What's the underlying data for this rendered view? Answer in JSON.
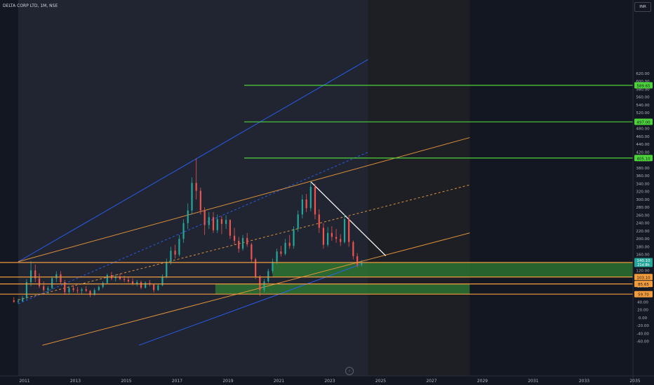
{
  "header": {
    "symbol_title": "DELTA CORP LTD, 1M, NSE",
    "currency": "INR"
  },
  "icons": {
    "logo": "tradingview-logo-icon"
  },
  "colors": {
    "background": "#131722",
    "up_candle": "#26a69a",
    "down_candle": "#ef5350",
    "resistance": "#4dd33a",
    "channel_orange": "#f39c3c",
    "channel_blue": "#2962ff",
    "trendline": "#ffffff",
    "support_zone": "#2e7d32",
    "axis_text": "#b2b5be"
  },
  "chart_data": {
    "type": "candlestick",
    "title": "DELTA CORP LTD, 1M, NSE",
    "xlabel": "",
    "ylabel": "",
    "currency": "INR",
    "xlim": [
      2010.6,
      2035.3
    ],
    "ylim": [
      -70,
      650
    ],
    "grid": false,
    "x_ticks": [
      2011,
      2013,
      2015,
      2017,
      2019,
      2021,
      2023,
      2025,
      2027,
      2029,
      2031,
      2033,
      2035
    ],
    "y_ticks": [
      -60,
      -40,
      -20,
      0,
      20,
      40,
      60,
      80,
      100,
      120,
      140,
      160,
      180,
      200,
      220,
      240,
      260,
      280,
      300,
      320,
      340,
      360,
      380,
      400,
      420,
      440,
      460,
      480,
      500,
      520,
      540,
      560,
      580,
      600,
      620
    ],
    "series": [
      {
        "type": "ohlc",
        "candles": [
          {
            "t": 2010.58,
            "o": 44,
            "h": 52,
            "l": 38,
            "c": 40
          },
          {
            "t": 2010.75,
            "o": 40,
            "h": 48,
            "l": 36,
            "c": 42
          },
          {
            "t": 2010.92,
            "o": 42,
            "h": 55,
            "l": 40,
            "c": 50
          },
          {
            "t": 2011.08,
            "o": 50,
            "h": 98,
            "l": 46,
            "c": 90
          },
          {
            "t": 2011.25,
            "o": 90,
            "h": 143,
            "l": 80,
            "c": 120
          },
          {
            "t": 2011.42,
            "o": 120,
            "h": 135,
            "l": 90,
            "c": 100
          },
          {
            "t": 2011.58,
            "o": 100,
            "h": 112,
            "l": 75,
            "c": 80
          },
          {
            "t": 2011.75,
            "o": 80,
            "h": 92,
            "l": 65,
            "c": 70
          },
          {
            "t": 2011.92,
            "o": 70,
            "h": 80,
            "l": 60,
            "c": 75
          },
          {
            "t": 2012.08,
            "o": 75,
            "h": 105,
            "l": 72,
            "c": 100
          },
          {
            "t": 2012.25,
            "o": 100,
            "h": 118,
            "l": 90,
            "c": 110
          },
          {
            "t": 2012.42,
            "o": 110,
            "h": 118,
            "l": 85,
            "c": 90
          },
          {
            "t": 2012.58,
            "o": 90,
            "h": 96,
            "l": 58,
            "c": 65
          },
          {
            "t": 2012.75,
            "o": 65,
            "h": 80,
            "l": 60,
            "c": 75
          },
          {
            "t": 2012.92,
            "o": 75,
            "h": 82,
            "l": 65,
            "c": 70
          },
          {
            "t": 2013.08,
            "o": 70,
            "h": 78,
            "l": 62,
            "c": 68
          },
          {
            "t": 2013.25,
            "o": 68,
            "h": 76,
            "l": 60,
            "c": 72
          },
          {
            "t": 2013.42,
            "o": 72,
            "h": 80,
            "l": 65,
            "c": 68
          },
          {
            "t": 2013.58,
            "o": 68,
            "h": 70,
            "l": 52,
            "c": 58
          },
          {
            "t": 2013.75,
            "o": 58,
            "h": 75,
            "l": 56,
            "c": 70
          },
          {
            "t": 2013.92,
            "o": 70,
            "h": 82,
            "l": 68,
            "c": 78
          },
          {
            "t": 2014.08,
            "o": 78,
            "h": 92,
            "l": 74,
            "c": 88
          },
          {
            "t": 2014.25,
            "o": 88,
            "h": 112,
            "l": 85,
            "c": 108
          },
          {
            "t": 2014.42,
            "o": 108,
            "h": 116,
            "l": 95,
            "c": 100
          },
          {
            "t": 2014.58,
            "o": 100,
            "h": 110,
            "l": 92,
            "c": 104
          },
          {
            "t": 2014.75,
            "o": 104,
            "h": 112,
            "l": 95,
            "c": 98
          },
          {
            "t": 2014.92,
            "o": 98,
            "h": 106,
            "l": 90,
            "c": 96
          },
          {
            "t": 2015.08,
            "o": 96,
            "h": 104,
            "l": 88,
            "c": 92
          },
          {
            "t": 2015.25,
            "o": 92,
            "h": 100,
            "l": 82,
            "c": 86
          },
          {
            "t": 2015.42,
            "o": 86,
            "h": 96,
            "l": 80,
            "c": 90
          },
          {
            "t": 2015.58,
            "o": 90,
            "h": 94,
            "l": 72,
            "c": 76
          },
          {
            "t": 2015.75,
            "o": 76,
            "h": 92,
            "l": 74,
            "c": 88
          },
          {
            "t": 2015.92,
            "o": 88,
            "h": 96,
            "l": 80,
            "c": 84
          },
          {
            "t": 2016.08,
            "o": 84,
            "h": 86,
            "l": 64,
            "c": 70
          },
          {
            "t": 2016.25,
            "o": 70,
            "h": 86,
            "l": 68,
            "c": 82
          },
          {
            "t": 2016.42,
            "o": 82,
            "h": 110,
            "l": 80,
            "c": 104
          },
          {
            "t": 2016.58,
            "o": 104,
            "h": 150,
            "l": 100,
            "c": 142
          },
          {
            "t": 2016.75,
            "o": 142,
            "h": 180,
            "l": 135,
            "c": 170
          },
          {
            "t": 2016.92,
            "o": 170,
            "h": 185,
            "l": 150,
            "c": 160
          },
          {
            "t": 2017.08,
            "o": 160,
            "h": 210,
            "l": 155,
            "c": 200
          },
          {
            "t": 2017.25,
            "o": 200,
            "h": 250,
            "l": 190,
            "c": 240
          },
          {
            "t": 2017.42,
            "o": 240,
            "h": 290,
            "l": 225,
            "c": 272
          },
          {
            "t": 2017.58,
            "o": 272,
            "h": 356,
            "l": 262,
            "c": 342
          },
          {
            "t": 2017.75,
            "o": 342,
            "h": 404,
            "l": 300,
            "c": 322
          },
          {
            "t": 2017.92,
            "o": 322,
            "h": 330,
            "l": 262,
            "c": 272
          },
          {
            "t": 2018.08,
            "o": 272,
            "h": 280,
            "l": 210,
            "c": 235
          },
          {
            "t": 2018.25,
            "o": 235,
            "h": 268,
            "l": 225,
            "c": 255
          },
          {
            "t": 2018.42,
            "o": 255,
            "h": 268,
            "l": 215,
            "c": 222
          },
          {
            "t": 2018.58,
            "o": 222,
            "h": 262,
            "l": 215,
            "c": 250
          },
          {
            "t": 2018.75,
            "o": 250,
            "h": 258,
            "l": 212,
            "c": 238
          },
          {
            "t": 2018.92,
            "o": 238,
            "h": 260,
            "l": 225,
            "c": 248
          },
          {
            "t": 2019.08,
            "o": 248,
            "h": 250,
            "l": 200,
            "c": 208
          },
          {
            "t": 2019.25,
            "o": 208,
            "h": 228,
            "l": 185,
            "c": 195
          },
          {
            "t": 2019.42,
            "o": 195,
            "h": 205,
            "l": 165,
            "c": 175
          },
          {
            "t": 2019.58,
            "o": 175,
            "h": 210,
            "l": 170,
            "c": 202
          },
          {
            "t": 2019.75,
            "o": 202,
            "h": 215,
            "l": 180,
            "c": 186
          },
          {
            "t": 2019.92,
            "o": 186,
            "h": 190,
            "l": 140,
            "c": 148
          },
          {
            "t": 2020.08,
            "o": 148,
            "h": 152,
            "l": 98,
            "c": 104
          },
          {
            "t": 2020.25,
            "o": 104,
            "h": 108,
            "l": 55,
            "c": 70
          },
          {
            "t": 2020.42,
            "o": 70,
            "h": 98,
            "l": 64,
            "c": 92
          },
          {
            "t": 2020.58,
            "o": 92,
            "h": 124,
            "l": 88,
            "c": 118
          },
          {
            "t": 2020.75,
            "o": 118,
            "h": 150,
            "l": 112,
            "c": 142
          },
          {
            "t": 2020.92,
            "o": 142,
            "h": 175,
            "l": 136,
            "c": 168
          },
          {
            "t": 2021.08,
            "o": 168,
            "h": 182,
            "l": 155,
            "c": 162
          },
          {
            "t": 2021.25,
            "o": 162,
            "h": 200,
            "l": 158,
            "c": 190
          },
          {
            "t": 2021.42,
            "o": 190,
            "h": 210,
            "l": 175,
            "c": 182
          },
          {
            "t": 2021.58,
            "o": 182,
            "h": 232,
            "l": 175,
            "c": 225
          },
          {
            "t": 2021.75,
            "o": 225,
            "h": 272,
            "l": 218,
            "c": 262
          },
          {
            "t": 2021.92,
            "o": 262,
            "h": 312,
            "l": 252,
            "c": 300
          },
          {
            "t": 2022.08,
            "o": 300,
            "h": 314,
            "l": 268,
            "c": 278
          },
          {
            "t": 2022.25,
            "o": 278,
            "h": 345,
            "l": 270,
            "c": 332
          },
          {
            "t": 2022.42,
            "o": 332,
            "h": 340,
            "l": 250,
            "c": 262
          },
          {
            "t": 2022.58,
            "o": 262,
            "h": 275,
            "l": 215,
            "c": 228
          },
          {
            "t": 2022.75,
            "o": 228,
            "h": 240,
            "l": 175,
            "c": 185
          },
          {
            "t": 2022.92,
            "o": 185,
            "h": 230,
            "l": 180,
            "c": 215
          },
          {
            "t": 2023.08,
            "o": 215,
            "h": 232,
            "l": 195,
            "c": 205
          },
          {
            "t": 2023.25,
            "o": 205,
            "h": 225,
            "l": 190,
            "c": 200
          },
          {
            "t": 2023.42,
            "o": 200,
            "h": 212,
            "l": 182,
            "c": 192
          },
          {
            "t": 2023.58,
            "o": 192,
            "h": 262,
            "l": 188,
            "c": 250
          },
          {
            "t": 2023.75,
            "o": 250,
            "h": 258,
            "l": 180,
            "c": 192
          },
          {
            "t": 2023.92,
            "o": 192,
            "h": 196,
            "l": 148,
            "c": 156
          },
          {
            "t": 2024.08,
            "o": 156,
            "h": 164,
            "l": 128,
            "c": 134
          },
          {
            "t": 2024.25,
            "o": 134,
            "h": 146,
            "l": 130,
            "c": 140
          }
        ]
      }
    ],
    "horizontal_levels": [
      {
        "value": 589.65,
        "label": "589.65",
        "color": "#4dd33a"
      },
      {
        "value": 497.0,
        "label": "497.00",
        "color": "#4dd33a"
      },
      {
        "value": 405.1,
        "label": "405.10",
        "color": "#4dd33a"
      },
      {
        "value": 140.0,
        "label": "140.00",
        "color": "#f39c3c"
      },
      {
        "value": 103.1,
        "label": "103.10",
        "color": "#f39c3c"
      },
      {
        "value": 85.65,
        "label": "85.65",
        "color": "#f39c3c"
      },
      {
        "value": 59.7,
        "label": "59.70",
        "color": "#f39c3c"
      }
    ],
    "price_labels": {
      "last": "140.10",
      "countdown": "21d 8h"
    },
    "zones": [
      {
        "name": "support-zone-upper",
        "x0": 2020.75,
        "x1": 2035.3,
        "y0": 103.1,
        "y1": 140.0
      },
      {
        "name": "support-zone-lower",
        "x0": 2018.5,
        "x1": 2028.5,
        "y0": 59.7,
        "y1": 85.65
      }
    ],
    "drawings": {
      "blue_channel": {
        "upper": [
          [
            2010.75,
            142
          ],
          [
            2024.5,
            655
          ]
        ],
        "mid": [
          [
            2010.75,
            35
          ],
          [
            2024.5,
            420
          ]
        ],
        "lower": [
          [
            2015.5,
            -70
          ],
          [
            2024.2,
            135
          ]
        ],
        "shade_x1": 2024.5
      },
      "orange_channel": {
        "upper": [
          [
            2010.75,
            142
          ],
          [
            2028.5,
            457
          ]
        ],
        "mid": [
          [
            2010.75,
            45
          ],
          [
            2028.5,
            337
          ]
        ],
        "lower": [
          [
            2011.7,
            -70
          ],
          [
            2028.5,
            215
          ]
        ],
        "shade_x1": 2028.5
      },
      "trendline": [
        [
          2022.25,
          345
        ],
        [
          2025.2,
          157
        ]
      ]
    }
  }
}
